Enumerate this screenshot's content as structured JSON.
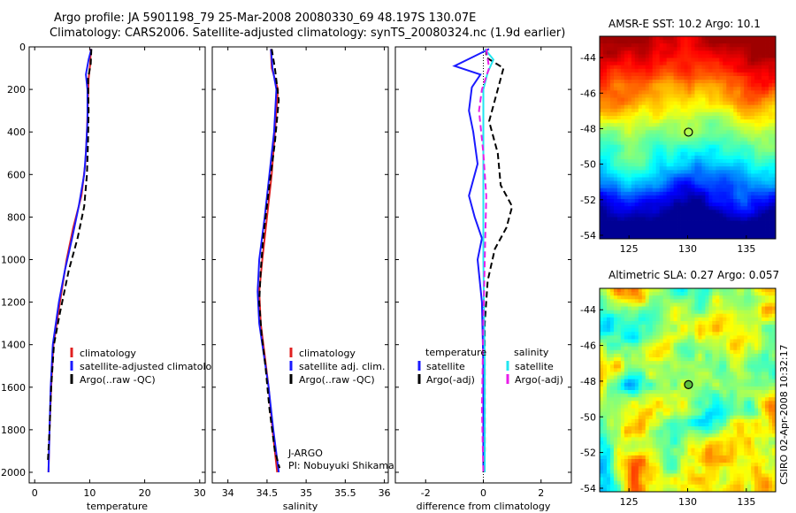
{
  "header": {
    "title_line1": "Argo profile: JA 5901198_79 25-Mar-2008 20080330_69 48.197S 130.07E",
    "title_line2": "Climatology: CARS2006. Satellite-adjusted climatology: synTS_20080324.nc (1.9d earlier)"
  },
  "footer": {
    "stamp": "CSIRO 02-Apr-2008 10:32:17"
  },
  "colors": {
    "red": "#e02020",
    "blue": "#1a1aff",
    "black": "#000000",
    "cyan": "#22e6f0",
    "magenta": "#e81ee8"
  },
  "chart_data": [
    {
      "type": "line",
      "xlabel": "temperature",
      "ylabel": "",
      "xlim": [
        -1,
        31
      ],
      "ylim": [
        2050,
        0
      ],
      "xticks": [
        "0",
        "10",
        "20",
        "30"
      ],
      "yticks": [
        "0",
        "200",
        "400",
        "600",
        "800",
        "1000",
        "1200",
        "1400",
        "1600",
        "1800",
        "2000"
      ],
      "legend": [
        "climatology",
        "satellite-adjusted climatology",
        "Argo(..raw -QC)"
      ],
      "series": [
        {
          "name": "climatology",
          "color": "red",
          "dash": "solid",
          "points": [
            [
              10.2,
              10
            ],
            [
              10.1,
              80
            ],
            [
              9.8,
              150
            ],
            [
              9.7,
              250
            ],
            [
              9.5,
              400
            ],
            [
              9.2,
              550
            ],
            [
              8.5,
              700
            ],
            [
              7.0,
              850
            ],
            [
              5.8,
              1000
            ],
            [
              4.6,
              1200
            ],
            [
              3.4,
              1400
            ],
            [
              3.0,
              1600
            ],
            [
              2.7,
              1800
            ],
            [
              2.5,
              2000
            ]
          ]
        },
        {
          "name": "satellite-adjusted climatology",
          "color": "blue",
          "dash": "solid",
          "points": [
            [
              10.3,
              10
            ],
            [
              9.8,
              60
            ],
            [
              9.3,
              130
            ],
            [
              9.6,
              200
            ],
            [
              9.6,
              350
            ],
            [
              9.3,
              500
            ],
            [
              9.0,
              600
            ],
            [
              8.0,
              750
            ],
            [
              6.8,
              900
            ],
            [
              5.5,
              1050
            ],
            [
              4.4,
              1200
            ],
            [
              3.3,
              1400
            ],
            [
              2.9,
              1600
            ],
            [
              2.7,
              1800
            ],
            [
              2.5,
              2000
            ]
          ]
        },
        {
          "name": "Argo(..raw -QC)",
          "color": "black",
          "dash": "dashed",
          "points": [
            [
              10.3,
              10
            ],
            [
              10.2,
              80
            ],
            [
              9.7,
              150
            ],
            [
              9.8,
              300
            ],
            [
              9.7,
              450
            ],
            [
              9.5,
              600
            ],
            [
              9.0,
              750
            ],
            [
              7.8,
              900
            ],
            [
              6.2,
              1050
            ],
            [
              4.6,
              1250
            ],
            [
              3.5,
              1400
            ],
            [
              3.0,
              1600
            ],
            [
              2.7,
              1800
            ],
            [
              2.4,
              1950
            ]
          ]
        }
      ]
    },
    {
      "type": "line",
      "xlabel": "salinity",
      "ylabel": "",
      "xlim": [
        33.8,
        36.05
      ],
      "ylim": [
        2050,
        0
      ],
      "xticks": [
        "34",
        "34.5",
        "35",
        "35.5",
        "36"
      ],
      "yticks": [],
      "legend": [
        "climatology",
        "satellite adj. clim.",
        "Argo(..raw -QC)"
      ],
      "annotation": [
        "J-ARGO",
        "PI: Nobuyuki Shikama"
      ],
      "series": [
        {
          "name": "climatology",
          "color": "red",
          "dash": "solid",
          "points": [
            [
              34.55,
              10
            ],
            [
              34.56,
              100
            ],
            [
              34.64,
              200
            ],
            [
              34.6,
              400
            ],
            [
              34.56,
              600
            ],
            [
              34.5,
              800
            ],
            [
              34.44,
              1000
            ],
            [
              34.4,
              1150
            ],
            [
              34.42,
              1300
            ],
            [
              34.47,
              1450
            ],
            [
              34.52,
              1600
            ],
            [
              34.57,
              1800
            ],
            [
              34.63,
              2000
            ]
          ]
        },
        {
          "name": "satellite adj. clim.",
          "color": "blue",
          "dash": "solid",
          "points": [
            [
              34.55,
              10
            ],
            [
              34.57,
              100
            ],
            [
              34.62,
              200
            ],
            [
              34.59,
              400
            ],
            [
              34.53,
              600
            ],
            [
              34.47,
              800
            ],
            [
              34.4,
              1000
            ],
            [
              34.38,
              1150
            ],
            [
              34.4,
              1300
            ],
            [
              34.46,
              1450
            ],
            [
              34.52,
              1600
            ],
            [
              34.58,
              1800
            ],
            [
              34.65,
              2000
            ]
          ]
        },
        {
          "name": "Argo(..raw -QC)",
          "color": "black",
          "dash": "dashed",
          "points": [
            [
              34.56,
              10
            ],
            [
              34.6,
              100
            ],
            [
              34.65,
              250
            ],
            [
              34.6,
              450
            ],
            [
              34.53,
              650
            ],
            [
              34.45,
              900
            ],
            [
              34.42,
              1050
            ],
            [
              34.4,
              1200
            ],
            [
              34.43,
              1350
            ],
            [
              34.48,
              1500
            ],
            [
              34.53,
              1700
            ],
            [
              34.6,
              1900
            ],
            [
              34.66,
              1980
            ]
          ]
        }
      ]
    },
    {
      "type": "line",
      "xlabel": "difference from climatology",
      "ylabel": "",
      "xlim": [
        -3.05,
        3.05
      ],
      "ylim": [
        2050,
        0
      ],
      "xticks": [
        "-2",
        "0",
        "2"
      ],
      "yticks": [],
      "legend_left_title": "temperature",
      "legend_right_title": "salinity",
      "legend": [
        "satellite",
        "Argo(-adj)",
        "satellite",
        "Argo(-adj)"
      ],
      "series": [
        {
          "name": "temperature satellite",
          "color": "blue",
          "dash": "solid",
          "points": [
            [
              0.2,
              10
            ],
            [
              -0.4,
              50
            ],
            [
              -1.0,
              90
            ],
            [
              -0.1,
              130
            ],
            [
              -0.4,
              190
            ],
            [
              -0.5,
              300
            ],
            [
              -0.35,
              400
            ],
            [
              -0.2,
              550
            ],
            [
              -0.5,
              700
            ],
            [
              -0.3,
              800
            ],
            [
              -0.05,
              900
            ],
            [
              -0.2,
              1000
            ],
            [
              -0.05,
              1200
            ],
            [
              0.0,
              1500
            ],
            [
              0.0,
              1800
            ],
            [
              0.0,
              2000
            ]
          ]
        },
        {
          "name": "temperature Argo(-adj)",
          "color": "black",
          "dash": "dashed",
          "points": [
            [
              0.1,
              10
            ],
            [
              0.1,
              50
            ],
            [
              0.7,
              100
            ],
            [
              0.5,
              200
            ],
            [
              0.2,
              350
            ],
            [
              0.5,
              500
            ],
            [
              0.6,
              650
            ],
            [
              1.0,
              750
            ],
            [
              0.8,
              850
            ],
            [
              0.4,
              950
            ],
            [
              0.15,
              1100
            ],
            [
              0.05,
              1300
            ],
            [
              0.05,
              1600
            ],
            [
              0.05,
              1900
            ],
            [
              0.0,
              2000
            ]
          ]
        },
        {
          "name": "salinity satellite",
          "color": "cyan",
          "dash": "solid",
          "points": [
            [
              0.05,
              10
            ],
            [
              0.35,
              60
            ],
            [
              0.15,
              120
            ],
            [
              0.0,
              200
            ],
            [
              0.0,
              500
            ],
            [
              0.0,
              1000
            ],
            [
              0.05,
              1500
            ],
            [
              0.05,
              2000
            ]
          ]
        },
        {
          "name": "salinity Argo(-adj)",
          "color": "magenta",
          "dash": "dashed",
          "points": [
            [
              0.1,
              10
            ],
            [
              0.2,
              100
            ],
            [
              -0.05,
              200
            ],
            [
              -0.15,
              300
            ],
            [
              0.0,
              500
            ],
            [
              0.1,
              700
            ],
            [
              0.05,
              1000
            ],
            [
              0.0,
              1300
            ],
            [
              -0.05,
              1700
            ],
            [
              0.0,
              2000
            ]
          ]
        }
      ]
    },
    {
      "type": "heatmap",
      "title": "AMSR-E SST: 10.2 Argo: 10.1",
      "xticks": [
        "125",
        "130",
        "135"
      ],
      "yticks": [
        "-44",
        "-46",
        "-48",
        "-50",
        "-52",
        "-54"
      ],
      "xlim": [
        122.5,
        137.5
      ],
      "ylim": [
        -54.2,
        -42.8
      ],
      "marker": [
        130.07,
        -48.197
      ]
    },
    {
      "type": "heatmap",
      "title": "Altimetric SLA: 0.27 Argo: 0.057",
      "xticks": [
        "125",
        "130",
        "135"
      ],
      "yticks": [
        "-44",
        "-46",
        "-48",
        "-50",
        "-52",
        "-54"
      ],
      "xlim": [
        122.5,
        137.5
      ],
      "ylim": [
        -54.2,
        -42.8
      ],
      "marker": [
        130.07,
        -48.197
      ]
    }
  ]
}
